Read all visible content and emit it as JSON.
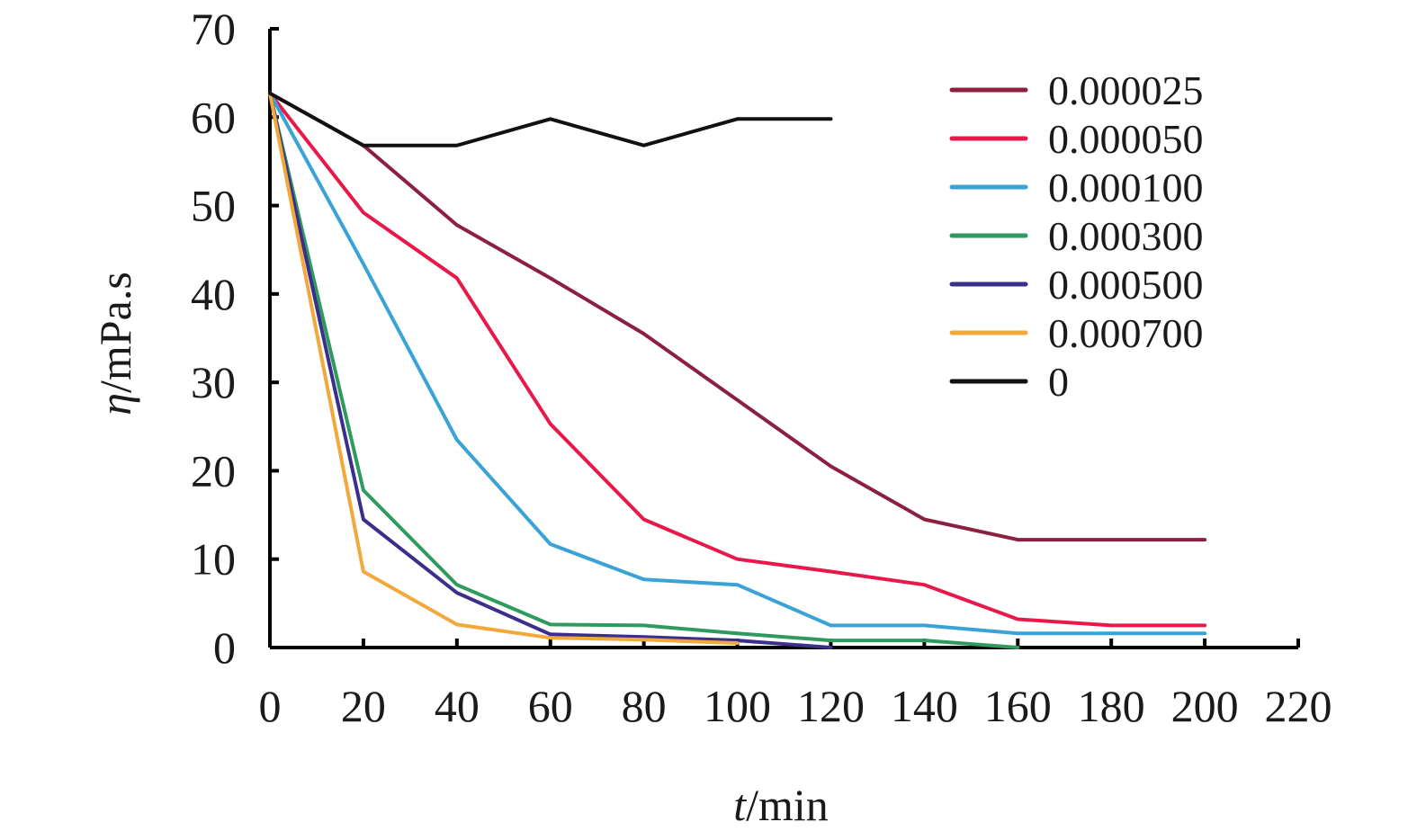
{
  "chart_data": {
    "type": "line",
    "xlabel_var": "t",
    "xlabel_unit": "/min",
    "ylabel_var": "η",
    "ylabel_unit": "/mPa.s",
    "xlim": [
      0,
      220
    ],
    "ylim": [
      0,
      70
    ],
    "x_ticks": [
      0,
      20,
      40,
      60,
      80,
      100,
      120,
      140,
      160,
      180,
      200,
      220
    ],
    "y_ticks": [
      0,
      10,
      20,
      30,
      40,
      50,
      60,
      70
    ],
    "grid": false,
    "legend_position": "top-right",
    "series": [
      {
        "name": "0.000025",
        "color": "#8b2040",
        "x": [
          0,
          20,
          40,
          60,
          80,
          100,
          120,
          140,
          160,
          180,
          200
        ],
        "y": [
          62.7,
          56.8,
          47.8,
          41.8,
          35.5,
          28.0,
          20.5,
          14.5,
          12.2,
          12.2,
          12.2
        ]
      },
      {
        "name": "0.000050",
        "color": "#e8194a",
        "x": [
          0,
          20,
          40,
          60,
          80,
          100,
          120,
          140,
          160,
          180,
          200
        ],
        "y": [
          62.7,
          49.2,
          41.8,
          25.3,
          14.5,
          10.0,
          8.6,
          7.1,
          3.2,
          2.5,
          2.5
        ]
      },
      {
        "name": "0.000100",
        "color": "#3aa3d6",
        "x": [
          0,
          20,
          40,
          60,
          80,
          100,
          120,
          140,
          160,
          180,
          200
        ],
        "y": [
          62.7,
          43.4,
          23.5,
          11.7,
          7.7,
          7.1,
          2.5,
          2.5,
          1.6,
          1.6,
          1.6
        ]
      },
      {
        "name": "0.000300",
        "color": "#2e9a5e",
        "x": [
          0,
          20,
          40,
          60,
          80,
          100,
          120,
          140,
          160
        ],
        "y": [
          62.7,
          17.8,
          7.1,
          2.6,
          2.5,
          1.6,
          0.8,
          0.8,
          0
        ]
      },
      {
        "name": "0.000500",
        "color": "#3b2f8c",
        "x": [
          0,
          20,
          40,
          60,
          80,
          100,
          120
        ],
        "y": [
          62.7,
          14.5,
          6.2,
          1.5,
          1.2,
          0.8,
          0
        ]
      },
      {
        "name": "0.000700",
        "color": "#f2a93b",
        "x": [
          0,
          20,
          40,
          60,
          80,
          100
        ],
        "y": [
          62.7,
          8.6,
          2.6,
          1.1,
          0.9,
          0.5
        ]
      },
      {
        "name": "0",
        "color": "#111111",
        "x": [
          0,
          20,
          40,
          60,
          80,
          100,
          120
        ],
        "y": [
          62.7,
          56.8,
          56.8,
          59.8,
          56.8,
          59.8,
          59.8
        ]
      }
    ]
  }
}
